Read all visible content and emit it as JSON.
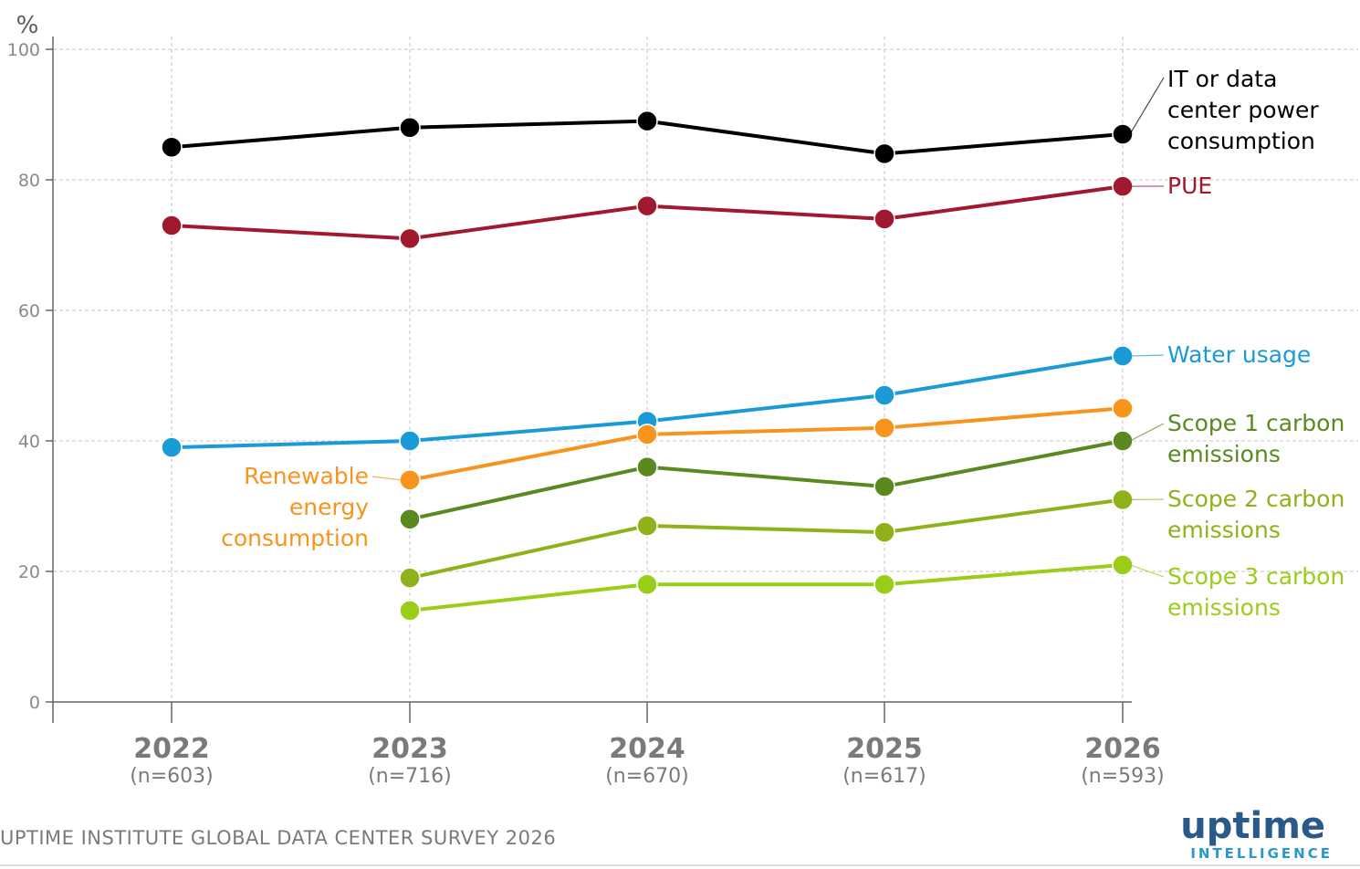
{
  "chart_data": {
    "type": "line",
    "ylabel": "%",
    "ylim": [
      0,
      100
    ],
    "yticks": [
      0,
      20,
      40,
      60,
      80,
      100
    ],
    "grid": true,
    "categories": [
      "2022",
      "2023",
      "2024",
      "2025",
      "2026"
    ],
    "sample_sizes": [
      "(n=603)",
      "(n=716)",
      "(n=670)",
      "(n=617)",
      "(n=593)"
    ],
    "series": [
      {
        "name": "IT or data center power consumption",
        "label_lines": [
          "IT or data",
          "center power",
          "consumption"
        ],
        "color": "#000000",
        "values": [
          85,
          88,
          89,
          84,
          87
        ]
      },
      {
        "name": "PUE",
        "label_lines": [
          "PUE"
        ],
        "color": "#a0192e",
        "values": [
          73,
          71,
          76,
          74,
          79
        ]
      },
      {
        "name": "Water usage",
        "label_lines": [
          "Water usage"
        ],
        "color": "#1a9ad6",
        "values": [
          39,
          40,
          43,
          47,
          53
        ]
      },
      {
        "name": "Renewable energy consumption",
        "label_lines": [
          "Renewable",
          "energy",
          "consumption"
        ],
        "color": "#f7941d",
        "values": [
          null,
          34,
          41,
          42,
          45
        ]
      },
      {
        "name": "Scope 1 carbon emissions",
        "label_lines": [
          "Scope 1 carbon",
          "emissions"
        ],
        "color": "#5a8a1f",
        "values": [
          null,
          28,
          36,
          33,
          40
        ]
      },
      {
        "name": "Scope 2 carbon emissions",
        "label_lines": [
          "Scope 2 carbon",
          "emissions"
        ],
        "color": "#8fb21a",
        "values": [
          null,
          19,
          27,
          26,
          31
        ]
      },
      {
        "name": "Scope 3 carbon emissions",
        "label_lines": [
          "Scope 3 carbon",
          "emissions"
        ],
        "color": "#9acd18",
        "values": [
          null,
          14,
          18,
          18,
          21
        ]
      }
    ]
  },
  "footer": {
    "source": "UPTIME INSTITUTE GLOBAL DATA CENTER SURVEY 2026",
    "logo_main": "uptime",
    "logo_sub": "INTELLIGENCE"
  }
}
